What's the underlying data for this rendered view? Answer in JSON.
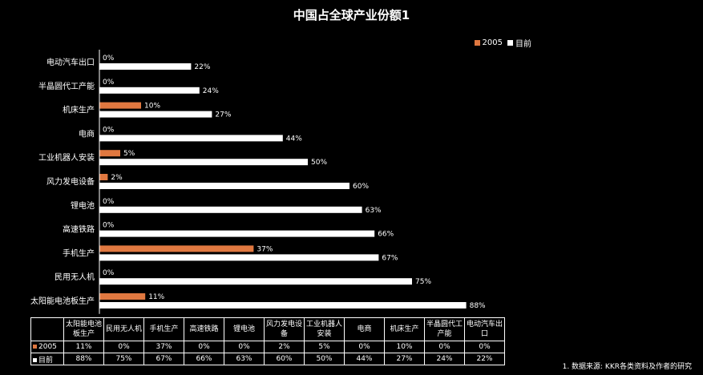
{
  "title": "中国占全球产业份额1",
  "legend": [
    {
      "label": "2005",
      "color": "#E07840"
    },
    {
      "label": "目前",
      "color": "#FFFFFF"
    }
  ],
  "footnote": "1. 数据来源: KKR各类资料及作者的研究",
  "chart_data": {
    "type": "bar",
    "orientation": "horizontal",
    "title": "中国占全球产业份额1",
    "categories": [
      "电动汽车出口",
      "半晶圆代工产能",
      "机床生产",
      "电商",
      "工业机器人安装",
      "风力发电设备",
      "锂电池",
      "高速铁路",
      "手机生产",
      "民用无人机",
      "太阳能电池板生产"
    ],
    "series": [
      {
        "name": "2005",
        "color": "#E07840",
        "values": [
          0,
          0,
          10,
          0,
          5,
          2,
          0,
          0,
          37,
          0,
          11
        ]
      },
      {
        "name": "目前",
        "color": "#FFFFFF",
        "values": [
          22,
          24,
          27,
          44,
          50,
          60,
          63,
          66,
          67,
          75,
          88
        ]
      }
    ],
    "value_suffix": "%",
    "legend_position": "top-right",
    "grid": false
  },
  "table": {
    "headers": [
      "太阳能电池板生产",
      "民用无人机",
      "手机生产",
      "高速铁路",
      "锂电池",
      "风力发电设备",
      "工业机器人安装",
      "电商",
      "机床生产",
      "半晶圆代工产能",
      "电动汽车出口"
    ],
    "rows": [
      {
        "label": "2005",
        "color": "#E07840",
        "values": [
          "11%",
          "0%",
          "37%",
          "0%",
          "0%",
          "2%",
          "5%",
          "0%",
          "10%",
          "0%",
          "0%"
        ]
      },
      {
        "label": "目前",
        "color": "#FFFFFF",
        "values": [
          "88%",
          "75%",
          "67%",
          "66%",
          "63%",
          "60%",
          "50%",
          "44%",
          "27%",
          "24%",
          "22%"
        ]
      }
    ]
  }
}
